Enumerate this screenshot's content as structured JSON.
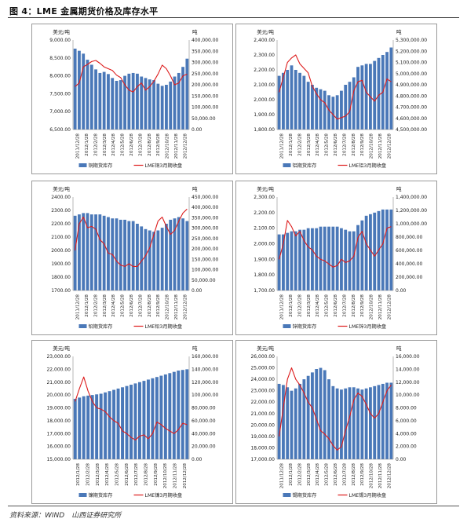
{
  "figure_title": "图 4：LME 金属期货价格及库存水平",
  "source": "资料来源：WIND　山西证券研究所",
  "colors": {
    "bar": "#4a78b8",
    "line": "#dd1c1c"
  },
  "chart_data": [
    {
      "type": "bar+line",
      "left_unit": "美元/吨",
      "right_unit": "吨",
      "left_ticks": [
        "6,500.00",
        "7,000.00",
        "7,500.00",
        "8,000.00",
        "8,500.00",
        "9,000.00"
      ],
      "right_ticks": [
        "0.00",
        "50,000.00",
        "100,000.00",
        "150,000.00",
        "200,000.00",
        "250,000.00",
        "300,000.00",
        "350,000.00",
        "400,000.00"
      ],
      "ylim_left": [
        6500,
        9000
      ],
      "ylim_right": [
        0,
        400000
      ],
      "x_labels": [
        "2011/12/28",
        "2012/1/28",
        "2012/2/28",
        "2012/3/28",
        "2012/4/28",
        "2012/5/28",
        "2012/6/28",
        "2012/7/28",
        "2012/8/28",
        "2012/9/28",
        "2012/10/28",
        "2012/11/28",
        "2012/12/28"
      ],
      "bar_series": {
        "name": "铜期货库存",
        "values": [
          8760,
          8700,
          8620,
          8450,
          8310,
          8180,
          8080,
          8110,
          8050,
          7940,
          7860,
          7880,
          8000,
          8060,
          8080,
          8060,
          7980,
          7940,
          7900,
          7880,
          7780,
          7720,
          7750,
          7840,
          7980,
          8080,
          8250,
          8480
        ]
      },
      "line_series": {
        "name": "LME铜3月期收盘",
        "values": [
          7700,
          7800,
          8250,
          8320,
          8400,
          8430,
          8350,
          8250,
          8200,
          8150,
          8020,
          7950,
          7750,
          7600,
          7550,
          7700,
          7800,
          7600,
          7700,
          7850,
          8050,
          8300,
          8200,
          8000,
          7750,
          7800,
          8000,
          8050
        ]
      }
    },
    {
      "type": "bar+line",
      "left_unit": "美元/吨",
      "right_unit": "吨",
      "left_ticks": [
        "1,800.00",
        "1,900.00",
        "2,000.00",
        "2,100.00",
        "2,200.00",
        "2,300.00",
        "2,400.00"
      ],
      "right_ticks": [
        "4,500,000.00",
        "4,600,000.00",
        "4,700,000.00",
        "4,800,000.00",
        "4,900,000.00",
        "5,000,000.00",
        "5,100,000.00",
        "5,200,000.00",
        "5,300,000.00"
      ],
      "ylim_left": [
        1800,
        2400
      ],
      "ylim_right": [
        4500000,
        5300000
      ],
      "x_labels": [
        "2011/12/28",
        "2012/1/28",
        "2012/2/28",
        "2012/3/28",
        "2012/4/28",
        "2012/5/28",
        "2012/6/28",
        "2012/7/28",
        "2012/8/28",
        "2012/9/28",
        "2012/10/28",
        "2012/11/28",
        "2012/12/28"
      ],
      "bar_series": {
        "name": "铝期货库存",
        "values": [
          2160,
          2180,
          2200,
          2230,
          2200,
          2180,
          2160,
          2120,
          2100,
          2080,
          2070,
          2060,
          2030,
          2020,
          2030,
          2060,
          2100,
          2120,
          2150,
          2220,
          2230,
          2240,
          2240,
          2260,
          2280,
          2300,
          2320,
          2350
        ]
      },
      "line_series": {
        "name": "LME铝3月期收盘",
        "values": [
          2050,
          2150,
          2250,
          2280,
          2300,
          2240,
          2210,
          2180,
          2090,
          2040,
          2000,
          1980,
          1930,
          1900,
          1870,
          1880,
          1890,
          1920,
          2060,
          2120,
          2130,
          2050,
          2020,
          1990,
          2030,
          2050,
          2140,
          2120
        ]
      }
    },
    {
      "type": "bar+line",
      "left_unit": "美元/吨",
      "right_unit": "吨",
      "left_ticks": [
        "1700.00",
        "1800.00",
        "1900.00",
        "2000.00",
        "2100.00",
        "2200.00",
        "2300.00",
        "2400.00"
      ],
      "right_ticks": [
        "0.00",
        "50,000.00",
        "100,000.00",
        "150,000.00",
        "200,000.00",
        "250,000.00",
        "300,000.00",
        "350,000.00",
        "400,000.00",
        "450,000.00"
      ],
      "ylim_left": [
        1700,
        2400
      ],
      "ylim_right": [
        0,
        450000
      ],
      "x_labels": [
        "2011/12/28",
        "2012/1/28",
        "2012/2/28",
        "2012/3/28",
        "2012/4/28",
        "2012/5/28",
        "2012/6/28",
        "2012/7/28",
        "2012/8/28",
        "2012/9/28",
        "2012/10/28",
        "2012/11/28",
        "2012/12/28"
      ],
      "bar_series": {
        "name": "铅期货库存",
        "values": [
          2260,
          2270,
          2280,
          2280,
          2270,
          2270,
          2270,
          2260,
          2250,
          2240,
          2240,
          2230,
          2230,
          2220,
          2220,
          2200,
          2180,
          2160,
          2150,
          2140,
          2150,
          2170,
          2200,
          2230,
          2240,
          2250,
          2240,
          2220
        ]
      },
      "line_series": {
        "name": "LME铅3月期收盘",
        "values": [
          2000,
          2200,
          2250,
          2170,
          2180,
          2160,
          2080,
          2050,
          1980,
          1970,
          1920,
          1890,
          1880,
          1900,
          1880,
          1880,
          1920,
          1960,
          2020,
          2120,
          2220,
          2250,
          2180,
          2120,
          2150,
          2220,
          2280,
          2310
        ]
      }
    },
    {
      "type": "bar+line",
      "left_unit": "美元/吨",
      "right_unit": "吨",
      "left_ticks": [
        "1,700.00",
        "1,800.00",
        "1,900.00",
        "2,000.00",
        "2,100.00",
        "2,200.00",
        "2,300.00"
      ],
      "right_ticks": [
        "0.00",
        "200,000.00",
        "400,000.00",
        "600,000.00",
        "800,000.00",
        "1,000,000.00",
        "1,200,000.00",
        "1,400,000.00"
      ],
      "ylim_left": [
        1700,
        2300
      ],
      "ylim_right": [
        0,
        1400000
      ],
      "x_labels": [
        "2011/12/28",
        "2012/1/28",
        "2012/2/28",
        "2012/3/28",
        "2012/4/28",
        "2012/5/28",
        "2012/6/28",
        "2012/7/28",
        "2012/8/28",
        "2012/9/28",
        "2012/10/28",
        "2012/11/28",
        "2012/12/28"
      ],
      "bar_series": {
        "name": "锌期货库存",
        "values": [
          2060,
          2060,
          2070,
          2080,
          2080,
          2090,
          2090,
          2100,
          2100,
          2100,
          2110,
          2110,
          2110,
          2110,
          2110,
          2100,
          2090,
          2080,
          2080,
          2120,
          2150,
          2180,
          2190,
          2200,
          2210,
          2220,
          2220,
          2220
        ]
      },
      "line_series": {
        "name": "LME锌3月期收盘",
        "values": [
          1900,
          2000,
          2150,
          2110,
          2050,
          2080,
          2020,
          1980,
          1960,
          1920,
          1900,
          1890,
          1870,
          1850,
          1860,
          1900,
          1880,
          1890,
          1920,
          2040,
          2080,
          2000,
          1960,
          1920,
          1960,
          2000,
          2100,
          2110
        ]
      }
    },
    {
      "type": "bar+line",
      "left_unit": "美元/吨",
      "right_unit": "吨",
      "left_ticks": [
        "15,000.00",
        "16,000.00",
        "17,000.00",
        "18,000.00",
        "19,000.00",
        "20,000.00",
        "21,000.00",
        "22,000.00",
        "23,000.00"
      ],
      "right_ticks": [
        "0.00",
        "20,000.00",
        "40,000.00",
        "60,000.00",
        "80,000.00",
        "100,000.00",
        "120,000.00",
        "140,000.00",
        "160,000.00"
      ],
      "ylim_left": [
        15000,
        23000
      ],
      "ylim_right": [
        0,
        160000
      ],
      "x_labels": [
        "2012/1/28",
        "2012/2/28",
        "2012/3/28",
        "2012/4/28",
        "2012/5/28",
        "2012/6/28",
        "2012/7/28",
        "2012/8/28",
        "2012/9/28",
        "2012/10/28",
        "2012/11/28",
        "2012/12/28"
      ],
      "bar_series": {
        "name": "镍期货库存",
        "values": [
          19700,
          19800,
          19900,
          19950,
          20000,
          20050,
          20100,
          20200,
          20300,
          20400,
          20500,
          20600,
          20700,
          20800,
          20900,
          21000,
          21100,
          21200,
          21300,
          21400,
          21500,
          21600,
          21700,
          21800,
          21900,
          21950,
          22000
        ]
      },
      "line_series": {
        "name": "LME镍3月期收盘",
        "values": [
          19500,
          20500,
          21400,
          20300,
          19500,
          19000,
          18900,
          18700,
          18300,
          18000,
          17800,
          17200,
          17000,
          16700,
          16500,
          16800,
          16900,
          16600,
          17000,
          17900,
          17700,
          17400,
          17200,
          17000,
          17300,
          17800,
          17700
        ]
      }
    },
    {
      "type": "bar+line",
      "left_unit": "美元/吨",
      "right_unit": "吨",
      "left_ticks": [
        "17,000.00",
        "18,000.00",
        "19,000.00",
        "20,000.00",
        "21,000.00",
        "22,000.00",
        "23,000.00",
        "24,000.00",
        "25,000.00",
        "26,000.00"
      ],
      "right_ticks": [
        "0.00",
        "2,000.00",
        "4,000.00",
        "6,000.00",
        "8,000.00",
        "10,000.00",
        "12,000.00",
        "14,000.00",
        "16,000.00"
      ],
      "ylim_left": [
        17000,
        26000
      ],
      "ylim_right": [
        0,
        16000
      ],
      "x_labels": [
        "2011/12/28",
        "2012/1/28",
        "2012/2/28",
        "2012/3/28",
        "2012/4/28",
        "2012/5/28",
        "2012/6/28",
        "2012/7/28",
        "2012/8/28",
        "2012/9/28",
        "2012/10/28",
        "2012/11/28",
        "2012/12/28"
      ],
      "bar_series": {
        "name": "锡期货库存",
        "values": [
          23600,
          23500,
          23300,
          23000,
          23200,
          23600,
          24000,
          24300,
          24600,
          24900,
          25000,
          24800,
          24000,
          23400,
          23200,
          23100,
          23200,
          23300,
          23300,
          23200,
          23100,
          23200,
          23300,
          23400,
          23500,
          23600,
          23700,
          23700
        ]
      },
      "line_series": {
        "name": "LME锡3月期收盘",
        "values": [
          19000,
          21500,
          24000,
          25000,
          24000,
          23500,
          22800,
          22000,
          21500,
          20500,
          19500,
          19200,
          18800,
          18200,
          17800,
          18100,
          19500,
          20700,
          22200,
          22800,
          22500,
          21800,
          21000,
          20600,
          21000,
          22000,
          23000,
          23500
        ]
      }
    }
  ]
}
